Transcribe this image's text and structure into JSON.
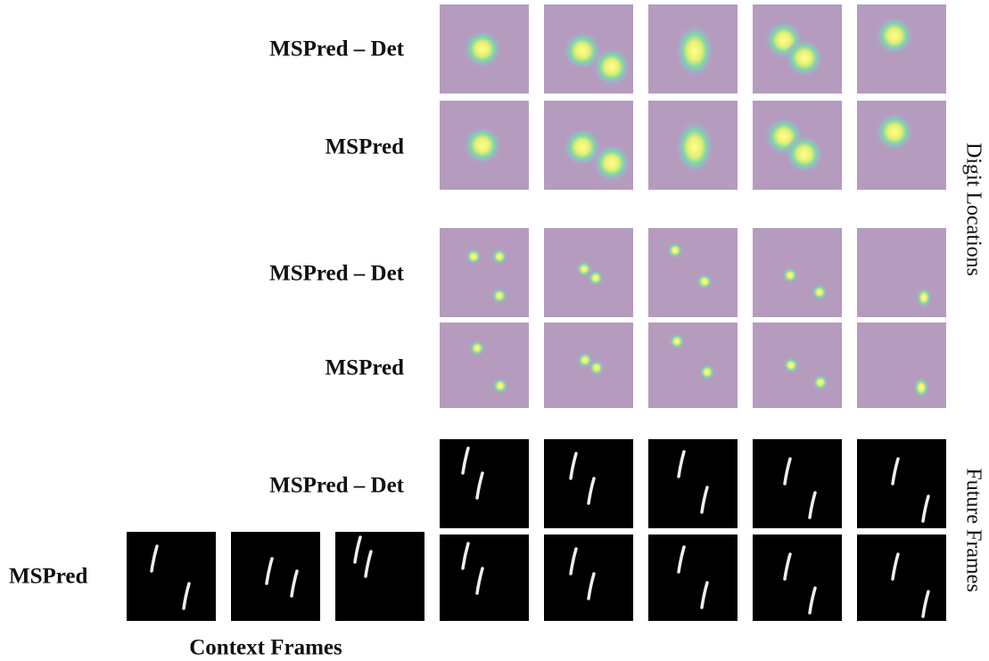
{
  "rows": [
    {
      "label": "MSPred – Det"
    },
    {
      "label": "MSPred"
    },
    {
      "label": "MSPred – Det"
    },
    {
      "label": "MSPred"
    },
    {
      "label": "MSPred – Det"
    },
    {
      "label": "MSPred"
    }
  ],
  "side_labels": [
    "Digit Locations",
    "Future Frames"
  ],
  "bottom_label": "Context Frames"
}
